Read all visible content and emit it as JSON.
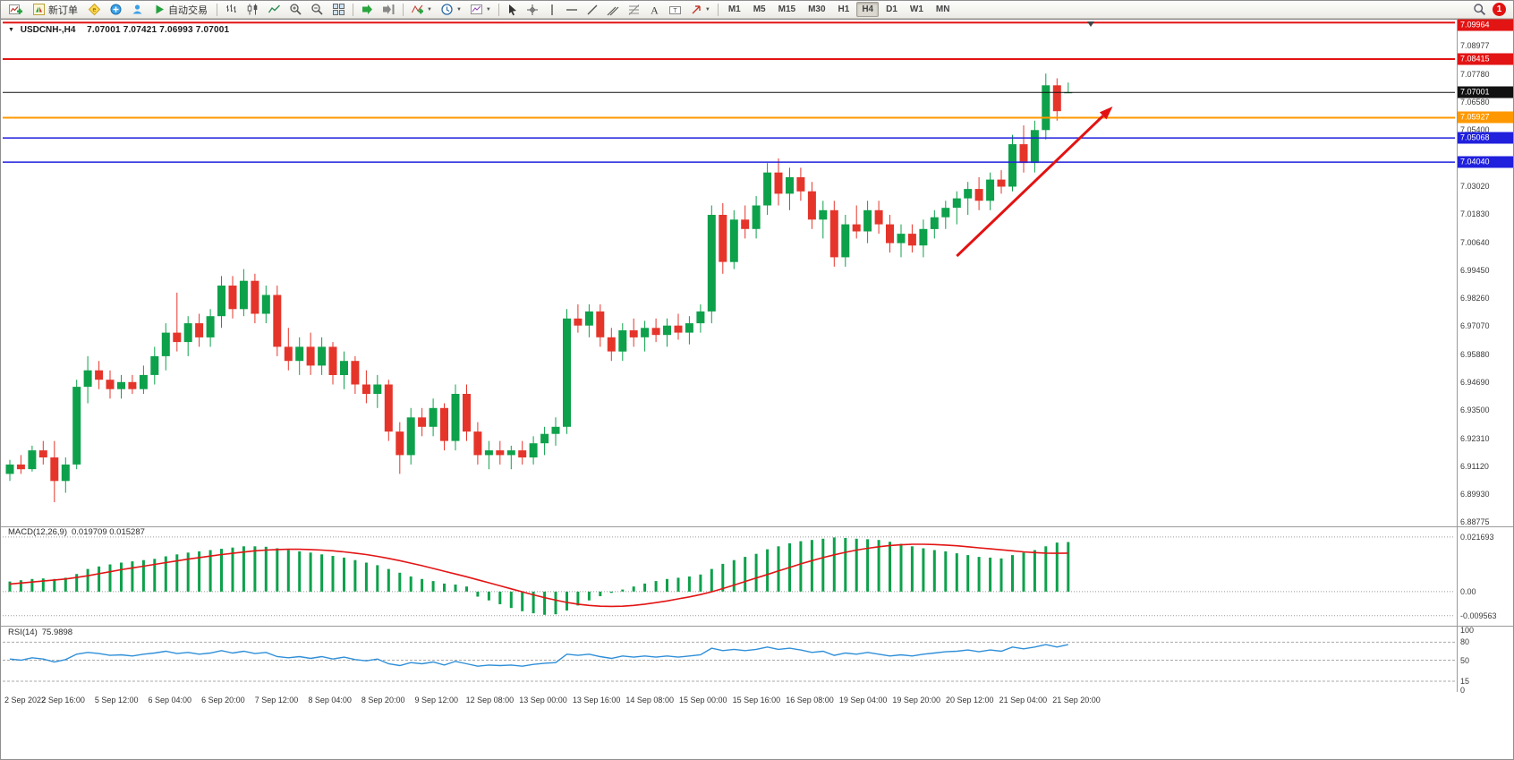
{
  "glyphs": {
    "down_triangle": "▼",
    "caret": "▼"
  },
  "toolbar": {
    "new_order_label": "新订单",
    "autotrading_label": "自动交易",
    "timeframes": [
      "M1",
      "M5",
      "M15",
      "M30",
      "H1",
      "H4",
      "D1",
      "W1",
      "MN"
    ],
    "active_timeframe": "H4",
    "badge_count": "1"
  },
  "chart": {
    "symbol_title": "USDCNH-,H4",
    "ohlc_text": "7.07001 7.07421 7.06993 7.07001"
  },
  "chart_data": [
    {
      "type": "candlestick",
      "title": "USDCNH-,H4",
      "timeframe": "H4",
      "up_color": "#0da14b",
      "down_color": "#e5352b",
      "ylim": [
        6.8865,
        7.1005
      ],
      "x_axis_labels": [
        "2 Sep 2022",
        "2 Sep 16:00",
        "5 Sep 12:00",
        "6 Sep 04:00",
        "6 Sep 20:00",
        "7 Sep 12:00",
        "8 Sep 04:00",
        "8 Sep 20:00",
        "9 Sep 12:00",
        "12 Sep 08:00",
        "13 Sep 00:00",
        "13 Sep 16:00",
        "14 Sep 08:00",
        "15 Sep 00:00",
        "15 Sep 16:00",
        "16 Sep 08:00",
        "19 Sep 04:00",
        "19 Sep 20:00",
        "20 Sep 12:00",
        "21 Sep 04:00",
        "21 Sep 20:00"
      ],
      "grid_labels": [
        "7.08977",
        "7.07780",
        "7.06580",
        "7.05400",
        "7.03020",
        "7.01830",
        "7.00640",
        "6.99450",
        "6.98260",
        "6.97070",
        "6.95880",
        "6.94690",
        "6.93500",
        "6.92310",
        "6.91120",
        "6.89930",
        "6.88775"
      ],
      "levels": [
        {
          "label": "7.09964",
          "price": 7.09964,
          "color": "#e21414",
          "width": 2
        },
        {
          "label": "7.08415",
          "price": 7.08415,
          "color": "#e21414",
          "width": 2
        },
        {
          "label": "7.07001",
          "price": 7.07001,
          "color": "#111111",
          "width": 1
        },
        {
          "label": "7.05927",
          "price": 7.05927,
          "color": "#ff9800",
          "width": 2
        },
        {
          "label": "7.05068",
          "price": 7.05068,
          "color": "#2020dd",
          "width": 1.5
        },
        {
          "label": "7.04040",
          "price": 7.0404,
          "color": "#2020dd",
          "width": 1.5
        }
      ],
      "trend_arrow": {
        "from_bar": 85,
        "from_price": 7.0005,
        "to_bar": 99,
        "to_price": 7.064,
        "color": "#e31212"
      },
      "ohlc": [
        [
          6.908,
          6.914,
          6.905,
          6.912
        ],
        [
          6.912,
          6.916,
          6.908,
          6.91
        ],
        [
          6.91,
          6.92,
          6.909,
          6.918
        ],
        [
          6.918,
          6.922,
          6.912,
          6.915
        ],
        [
          6.915,
          6.922,
          6.896,
          6.905
        ],
        [
          6.905,
          6.915,
          6.9,
          6.912
        ],
        [
          6.912,
          6.948,
          6.91,
          6.945
        ],
        [
          6.945,
          6.958,
          6.938,
          6.952
        ],
        [
          6.952,
          6.956,
          6.944,
          6.948
        ],
        [
          6.948,
          6.952,
          6.94,
          6.944
        ],
        [
          6.944,
          6.95,
          6.94,
          6.947
        ],
        [
          6.947,
          6.95,
          6.942,
          6.944
        ],
        [
          6.944,
          6.954,
          6.942,
          6.95
        ],
        [
          6.95,
          6.962,
          6.946,
          6.958
        ],
        [
          6.958,
          6.972,
          6.952,
          6.968
        ],
        [
          6.968,
          6.985,
          6.96,
          6.964
        ],
        [
          6.964,
          6.975,
          6.958,
          6.972
        ],
        [
          6.972,
          6.976,
          6.962,
          6.966
        ],
        [
          6.966,
          6.978,
          6.962,
          6.975
        ],
        [
          6.975,
          6.992,
          6.97,
          6.988
        ],
        [
          6.988,
          6.992,
          6.974,
          6.978
        ],
        [
          6.978,
          6.995,
          6.975,
          6.99
        ],
        [
          6.99,
          6.993,
          6.972,
          6.976
        ],
        [
          6.976,
          6.988,
          6.972,
          6.984
        ],
        [
          6.984,
          6.988,
          6.958,
          6.962
        ],
        [
          6.962,
          6.97,
          6.952,
          6.956
        ],
        [
          6.956,
          6.966,
          6.95,
          6.962
        ],
        [
          6.962,
          6.968,
          6.95,
          6.954
        ],
        [
          6.954,
          6.966,
          6.95,
          6.962
        ],
        [
          6.962,
          6.964,
          6.946,
          6.95
        ],
        [
          6.95,
          6.96,
          6.944,
          6.956
        ],
        [
          6.956,
          6.958,
          6.942,
          6.946
        ],
        [
          6.946,
          6.952,
          6.938,
          6.942
        ],
        [
          6.942,
          6.95,
          6.936,
          6.946
        ],
        [
          6.946,
          6.948,
          6.922,
          6.926
        ],
        [
          6.926,
          6.93,
          6.908,
          6.916
        ],
        [
          6.916,
          6.936,
          6.912,
          6.932
        ],
        [
          6.932,
          6.936,
          6.924,
          6.928
        ],
        [
          6.928,
          6.94,
          6.924,
          6.936
        ],
        [
          6.936,
          6.938,
          6.918,
          6.922
        ],
        [
          6.922,
          6.946,
          6.918,
          6.942
        ],
        [
          6.942,
          6.946,
          6.922,
          6.926
        ],
        [
          6.926,
          6.93,
          6.912,
          6.916
        ],
        [
          6.916,
          6.922,
          6.91,
          6.918
        ],
        [
          6.918,
          6.922,
          6.912,
          6.916
        ],
        [
          6.916,
          6.92,
          6.91,
          6.918
        ],
        [
          6.918,
          6.922,
          6.912,
          6.915
        ],
        [
          6.915,
          6.924,
          6.912,
          6.921
        ],
        [
          6.921,
          6.928,
          6.916,
          6.925
        ],
        [
          6.925,
          6.932,
          6.92,
          6.928
        ],
        [
          6.928,
          6.978,
          6.925,
          6.974
        ],
        [
          6.974,
          6.98,
          6.968,
          6.971
        ],
        [
          6.971,
          6.98,
          6.966,
          6.977
        ],
        [
          6.977,
          6.98,
          6.962,
          6.966
        ],
        [
          6.966,
          6.97,
          6.956,
          6.96
        ],
        [
          6.96,
          6.972,
          6.956,
          6.969
        ],
        [
          6.969,
          6.974,
          6.962,
          6.966
        ],
        [
          6.966,
          6.973,
          6.96,
          6.97
        ],
        [
          6.97,
          6.974,
          6.964,
          6.967
        ],
        [
          6.967,
          6.974,
          6.962,
          6.971
        ],
        [
          6.971,
          6.976,
          6.965,
          6.968
        ],
        [
          6.968,
          6.975,
          6.963,
          6.972
        ],
        [
          6.972,
          6.98,
          6.968,
          6.977
        ],
        [
          6.977,
          7.022,
          6.972,
          7.018
        ],
        [
          7.018,
          7.023,
          6.993,
          6.998
        ],
        [
          6.998,
          7.02,
          6.995,
          7.016
        ],
        [
          7.016,
          7.022,
          7.008,
          7.012
        ],
        [
          7.012,
          7.026,
          7.008,
          7.022
        ],
        [
          7.022,
          7.04,
          7.018,
          7.036
        ],
        [
          7.036,
          7.042,
          7.022,
          7.027
        ],
        [
          7.027,
          7.038,
          7.02,
          7.034
        ],
        [
          7.034,
          7.038,
          7.024,
          7.028
        ],
        [
          7.028,
          7.032,
          7.012,
          7.016
        ],
        [
          7.016,
          7.024,
          7.008,
          7.02
        ],
        [
          7.02,
          7.024,
          6.996,
          7.0
        ],
        [
          7.0,
          7.018,
          6.996,
          7.014
        ],
        [
          7.014,
          7.022,
          7.008,
          7.011
        ],
        [
          7.011,
          7.024,
          7.006,
          7.02
        ],
        [
          7.02,
          7.024,
          7.01,
          7.014
        ],
        [
          7.014,
          7.018,
          7.002,
          7.006
        ],
        [
          7.006,
          7.014,
          7.0,
          7.01
        ],
        [
          7.01,
          7.014,
          7.002,
          7.005
        ],
        [
          7.005,
          7.016,
          7.0,
          7.012
        ],
        [
          7.012,
          7.02,
          7.008,
          7.017
        ],
        [
          7.017,
          7.024,
          7.012,
          7.021
        ],
        [
          7.021,
          7.028,
          7.014,
          7.025
        ],
        [
          7.025,
          7.032,
          7.018,
          7.029
        ],
        [
          7.029,
          7.034,
          7.02,
          7.024
        ],
        [
          7.024,
          7.036,
          7.02,
          7.033
        ],
        [
          7.033,
          7.037,
          7.027,
          7.03
        ],
        [
          7.03,
          7.052,
          7.028,
          7.048
        ],
        [
          7.048,
          7.056,
          7.036,
          7.04
        ],
        [
          7.04,
          7.058,
          7.036,
          7.054
        ],
        [
          7.054,
          7.078,
          7.05,
          7.073
        ],
        [
          7.073,
          7.076,
          7.058,
          7.062
        ],
        [
          7.07,
          7.0742,
          7.0699,
          7.07
        ]
      ]
    },
    {
      "type": "bar",
      "name": "MACD(12,26,9)",
      "current_values": "0.019709 0.015287",
      "hist_color": "#0da14b",
      "signal_color": "#e21414",
      "ylim": [
        -0.0125,
        0.0245
      ],
      "axis_labels": [
        {
          "text": "0.021693",
          "value": 0.021693
        },
        {
          "text": "0.00",
          "value": 0
        },
        {
          "text": "-0.009563",
          "value": -0.009563
        }
      ],
      "histogram": [
        0.004,
        0.0045,
        0.005,
        0.0052,
        0.005,
        0.0055,
        0.007,
        0.009,
        0.01,
        0.0108,
        0.0115,
        0.012,
        0.0125,
        0.013,
        0.014,
        0.0148,
        0.0155,
        0.016,
        0.0165,
        0.017,
        0.0175,
        0.018,
        0.018,
        0.0178,
        0.0172,
        0.0165,
        0.016,
        0.0155,
        0.0148,
        0.0142,
        0.0135,
        0.0125,
        0.0115,
        0.0105,
        0.009,
        0.0075,
        0.006,
        0.005,
        0.0042,
        0.0032,
        0.0028,
        0.002,
        -0.002,
        -0.0035,
        -0.005,
        -0.0065,
        -0.0078,
        -0.0086,
        -0.0092,
        -0.009,
        -0.0075,
        -0.0055,
        -0.0035,
        -0.0018,
        -0.0005,
        0.0008,
        0.002,
        0.0032,
        0.0042,
        0.005,
        0.0055,
        0.006,
        0.0068,
        0.009,
        0.011,
        0.0125,
        0.0138,
        0.015,
        0.0168,
        0.018,
        0.0192,
        0.02,
        0.0205,
        0.021,
        0.0215,
        0.0213,
        0.021,
        0.0208,
        0.0205,
        0.0198,
        0.019,
        0.018,
        0.0172,
        0.0165,
        0.016,
        0.0152,
        0.0145,
        0.0138,
        0.0135,
        0.0132,
        0.0145,
        0.0155,
        0.0165,
        0.018,
        0.0195,
        0.0197
      ],
      "signal": [
        0.003,
        0.0034,
        0.0038,
        0.0042,
        0.0046,
        0.005,
        0.0056,
        0.0063,
        0.0071,
        0.0079,
        0.0087,
        0.0094,
        0.0101,
        0.0108,
        0.0115,
        0.0122,
        0.0129,
        0.0135,
        0.0141,
        0.0147,
        0.0152,
        0.0157,
        0.0162,
        0.0165,
        0.0167,
        0.0168,
        0.0168,
        0.0167,
        0.0165,
        0.0162,
        0.0158,
        0.0153,
        0.0147,
        0.014,
        0.0132,
        0.0123,
        0.0113,
        0.0103,
        0.0092,
        0.0081,
        0.007,
        0.0059,
        0.0047,
        0.0035,
        0.0023,
        0.0011,
        -0.0001,
        -0.0013,
        -0.0024,
        -0.0034,
        -0.0043,
        -0.005,
        -0.0055,
        -0.0058,
        -0.0059,
        -0.0058,
        -0.0055,
        -0.005,
        -0.0044,
        -0.0037,
        -0.0029,
        -0.0021,
        -0.0012,
        -0.0001,
        0.0012,
        0.0026,
        0.004,
        0.0054,
        0.0068,
        0.0082,
        0.0096,
        0.011,
        0.0123,
        0.0135,
        0.0146,
        0.0156,
        0.0165,
        0.0172,
        0.0178,
        0.0183,
        0.0186,
        0.0188,
        0.0188,
        0.0187,
        0.0185,
        0.0182,
        0.0178,
        0.0174,
        0.017,
        0.0166,
        0.0162,
        0.0158,
        0.0155,
        0.0153,
        0.0152,
        0.0153
      ]
    },
    {
      "type": "line",
      "name": "RSI(14)",
      "current_value": "75.9898",
      "color": "#2f8fd8",
      "ylim": [
        0,
        100
      ],
      "levels": [
        {
          "text": "100",
          "value": 100,
          "line": false
        },
        {
          "text": "80",
          "value": 80,
          "line": true
        },
        {
          "text": "50",
          "value": 50,
          "line": true
        },
        {
          "text": "15",
          "value": 15,
          "line": true
        },
        {
          "text": "0",
          "value": 0,
          "line": false
        }
      ],
      "values": [
        52,
        50,
        54,
        52,
        47,
        51,
        60,
        63,
        61,
        58,
        59,
        57,
        60,
        62,
        65,
        61,
        63,
        60,
        62,
        66,
        62,
        65,
        61,
        63,
        56,
        54,
        56,
        53,
        56,
        52,
        55,
        51,
        49,
        52,
        44,
        41,
        46,
        44,
        47,
        42,
        48,
        44,
        40,
        42,
        41,
        42,
        40,
        43,
        45,
        46,
        60,
        58,
        60,
        56,
        53,
        57,
        55,
        57,
        55,
        57,
        55,
        57,
        59,
        70,
        66,
        68,
        66,
        68,
        72,
        68,
        70,
        67,
        63,
        65,
        58,
        62,
        60,
        63,
        60,
        57,
        59,
        57,
        60,
        62,
        64,
        65,
        67,
        64,
        67,
        65,
        72,
        69,
        72,
        76,
        72,
        76
      ]
    }
  ]
}
